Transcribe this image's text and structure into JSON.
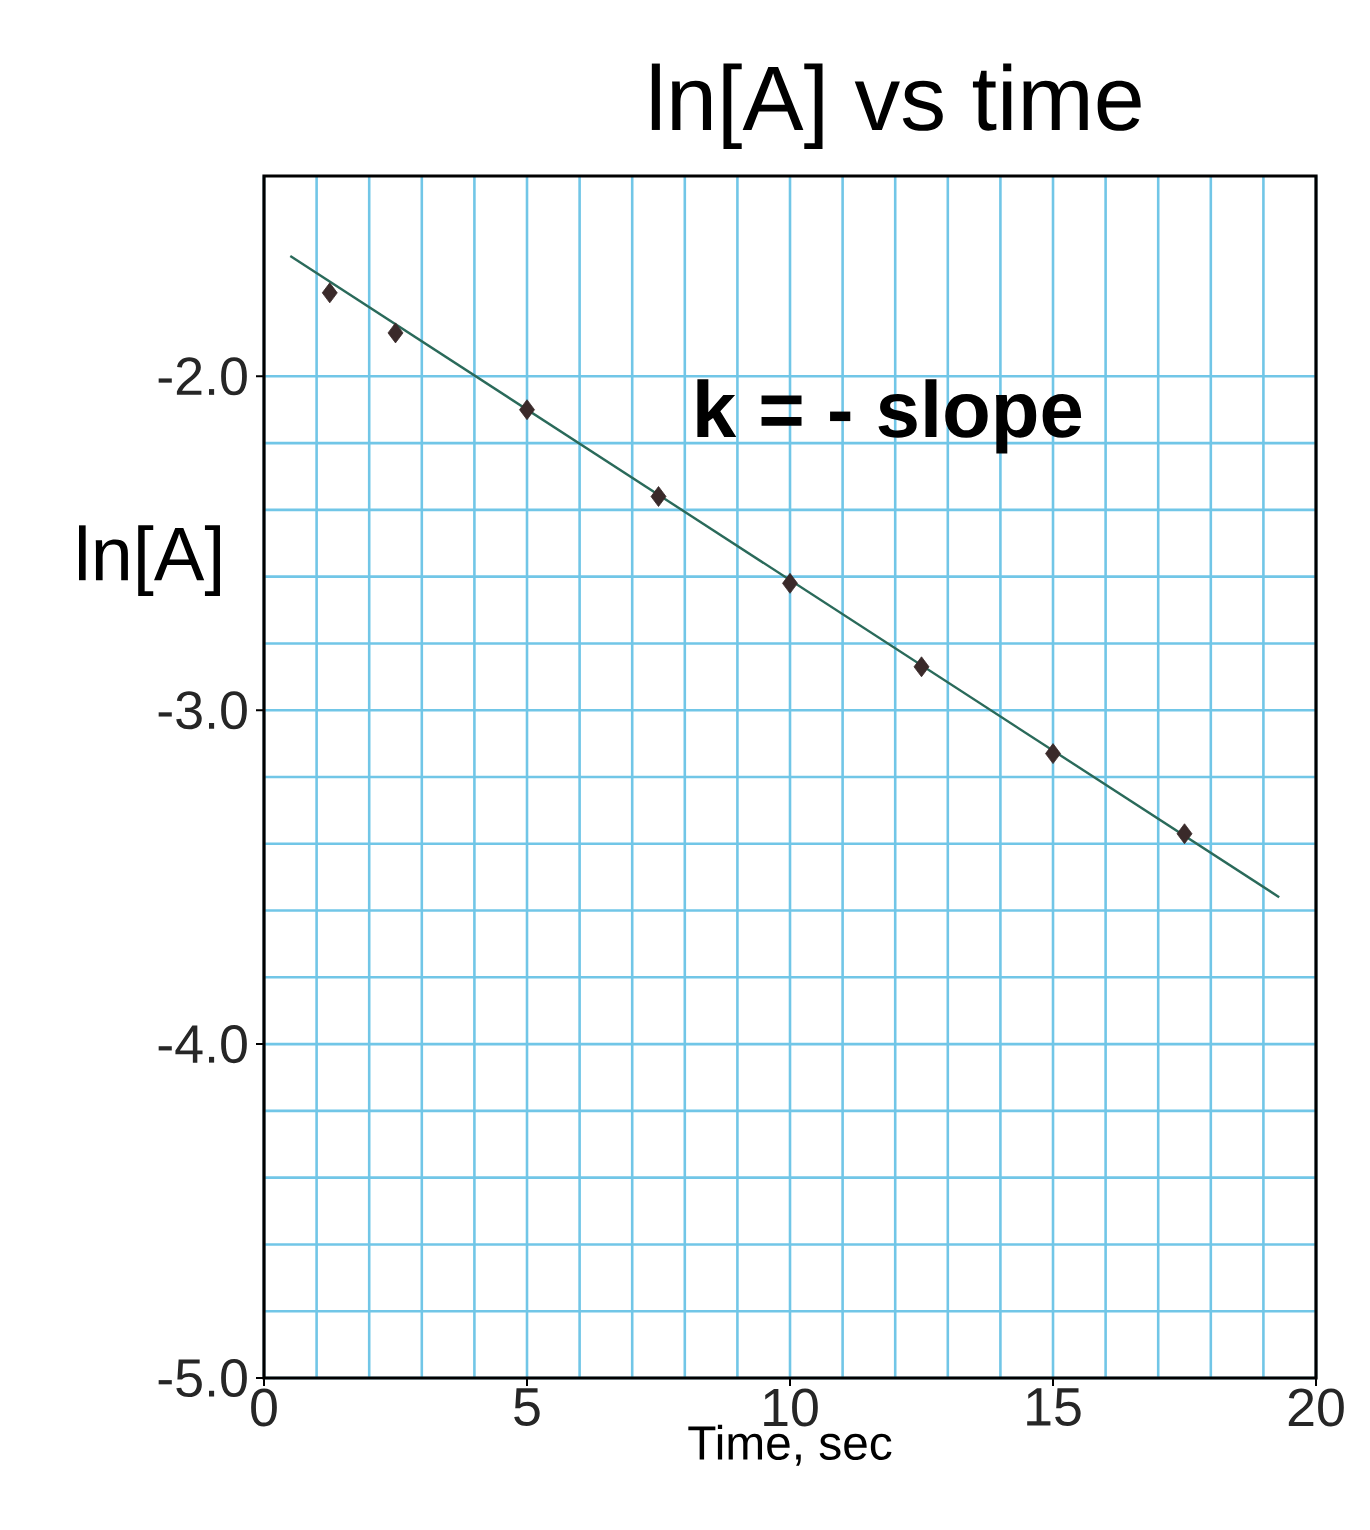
{
  "chart_data": {
    "type": "scatter",
    "title": "ln[A] vs time",
    "xlabel": "Time, sec",
    "ylabel": "ln[A]",
    "annotations": [
      "k = - slope"
    ],
    "x": [
      1.25,
      2.5,
      5,
      7.5,
      10,
      12.5,
      15,
      17.5
    ],
    "series": [
      {
        "color": "#3a2a2a",
        "marker": "diamond",
        "values": [
          -1.75,
          -1.87,
          -2.1,
          -2.36,
          -2.62,
          -2.87,
          -3.13,
          -3.37
        ]
      },
      {
        "type": "line",
        "color": "#2a6a5a",
        "marker": "none",
        "line_style": "solid",
        "x": [
          0.5,
          19.3
        ],
        "values": [
          -1.64,
          -3.56
        ]
      }
    ],
    "xlim": [
      0,
      20
    ],
    "ylim": [
      -5,
      -1.4
    ],
    "xticks": [
      0,
      5,
      10,
      15,
      20
    ],
    "yticks": [
      {
        "value": -5,
        "label": "-5.0"
      },
      {
        "value": -4,
        "label": "-4.0"
      },
      {
        "value": -3,
        "label": "-3.0"
      },
      {
        "value": -2,
        "label": "-2.0"
      }
    ],
    "grid": true
  }
}
